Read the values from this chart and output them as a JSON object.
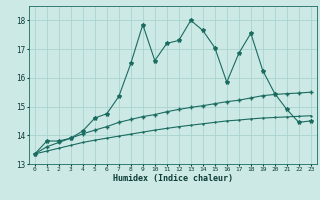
{
  "xlabel": "Humidex (Indice chaleur)",
  "background_color": "#cce9e5",
  "grid_color": "#aad4cf",
  "line_color": "#1a6b60",
  "xlim": [
    -0.5,
    23.5
  ],
  "ylim": [
    13,
    18.5
  ],
  "yticks": [
    13,
    14,
    15,
    16,
    17,
    18
  ],
  "xticks": [
    0,
    1,
    2,
    3,
    4,
    5,
    6,
    7,
    8,
    9,
    10,
    11,
    12,
    13,
    14,
    15,
    16,
    17,
    18,
    19,
    20,
    21,
    22,
    23
  ],
  "series1_x": [
    0,
    1,
    2,
    3,
    4,
    5,
    6,
    7,
    8,
    9,
    10,
    11,
    12,
    13,
    14,
    15,
    16,
    17,
    18,
    19,
    20,
    21,
    22,
    23
  ],
  "series1_y": [
    13.35,
    13.8,
    13.8,
    13.9,
    14.15,
    14.6,
    14.75,
    15.35,
    16.5,
    17.85,
    16.6,
    17.2,
    17.3,
    18.0,
    17.65,
    17.05,
    15.85,
    16.85,
    17.55,
    16.25,
    15.45,
    14.9,
    14.45,
    14.5
  ],
  "series2_x": [
    0,
    1,
    2,
    3,
    4,
    5,
    6,
    7,
    8,
    9,
    10,
    11,
    12,
    13,
    14,
    15,
    16,
    17,
    18,
    19,
    20,
    21,
    22,
    23
  ],
  "series2_y": [
    13.35,
    13.6,
    13.75,
    13.9,
    14.05,
    14.18,
    14.3,
    14.45,
    14.55,
    14.65,
    14.72,
    14.82,
    14.9,
    14.97,
    15.03,
    15.1,
    15.17,
    15.22,
    15.3,
    15.38,
    15.42,
    15.45,
    15.47,
    15.5
  ],
  "series3_x": [
    0,
    1,
    2,
    3,
    4,
    5,
    6,
    7,
    8,
    9,
    10,
    11,
    12,
    13,
    14,
    15,
    16,
    17,
    18,
    19,
    20,
    21,
    22,
    23
  ],
  "series3_y": [
    13.35,
    13.45,
    13.55,
    13.65,
    13.75,
    13.83,
    13.9,
    13.97,
    14.04,
    14.11,
    14.18,
    14.24,
    14.3,
    14.35,
    14.4,
    14.45,
    14.5,
    14.53,
    14.57,
    14.6,
    14.62,
    14.64,
    14.66,
    14.68
  ]
}
